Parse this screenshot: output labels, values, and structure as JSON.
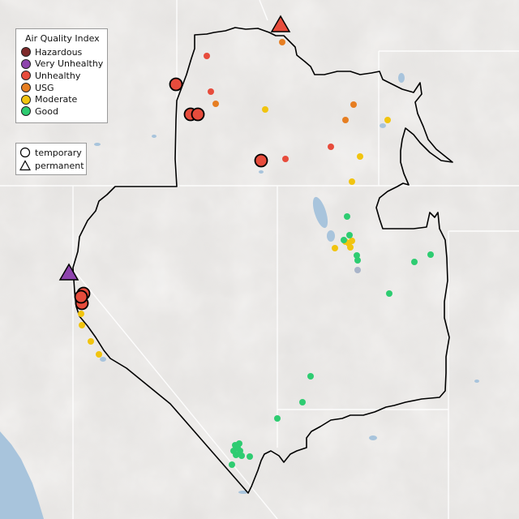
{
  "legend": {
    "title": "Air Quality Index",
    "categories": [
      {
        "label": "Hazardous",
        "color": "#7e2a2a"
      },
      {
        "label": "Very Unhealthy",
        "color": "#8e44ad"
      },
      {
        "label": "Unhealthy",
        "color": "#e74c3c"
      },
      {
        "label": "USG",
        "color": "#e67e22"
      },
      {
        "label": "Moderate",
        "color": "#f1c40f"
      },
      {
        "label": "Good",
        "color": "#2ecc71"
      }
    ],
    "types": [
      {
        "label": "temporary",
        "shape": "circle"
      },
      {
        "label": "permanent",
        "shape": "triangle"
      }
    ]
  },
  "colors": {
    "background": "#dcdcdc",
    "terrain": "#e8e6e4",
    "water": "#a8c4dc",
    "boundary": "#000000",
    "state_line": "#ffffff",
    "no_data": "#a9b4c9"
  }
}
